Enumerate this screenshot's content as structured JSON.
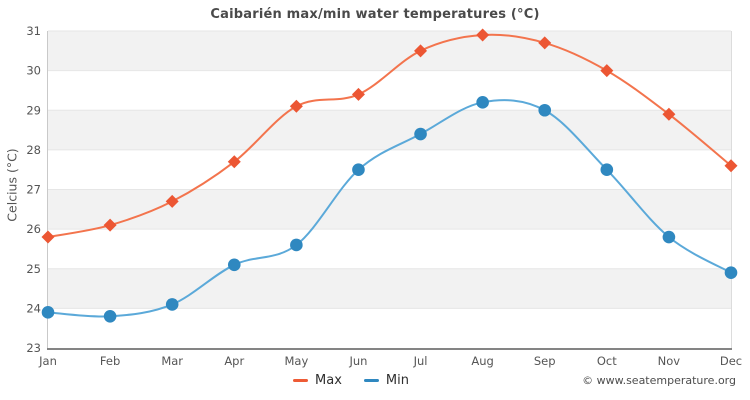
{
  "title": "Caibarién max/min water temperatures (°C)",
  "y_axis_title": "Celcius (°C)",
  "footer": "© www.seatemperature.org",
  "legend": {
    "items": [
      {
        "label": "Max",
        "color": "#ee5b35"
      },
      {
        "label": "Min",
        "color": "#2f88c0"
      }
    ]
  },
  "colors": {
    "band_fill": "#f2f2f2",
    "gridline": "#e6e6e6",
    "left_spine": "#c9c9c9",
    "right_spine": "#dcdcdc",
    "bottom_spine": "#848484",
    "max_line": "#f3744d",
    "max_marker": "#ec5633",
    "min_line": "#5ba9d9",
    "min_marker": "#2f88c0"
  },
  "chart_data": {
    "type": "line",
    "title": "Caibarién max/min water temperatures (°C)",
    "xlabel": "",
    "ylabel": "Celcius (°C)",
    "categories": [
      "Jan",
      "Feb",
      "Mar",
      "Apr",
      "May",
      "Jun",
      "Jul",
      "Aug",
      "Sep",
      "Oct",
      "Nov",
      "Dec"
    ],
    "series": [
      {
        "name": "Max",
        "marker": "diamond",
        "values": [
          25.8,
          26.1,
          26.7,
          27.7,
          29.1,
          29.4,
          30.5,
          30.9,
          30.7,
          30.0,
          28.9,
          27.6
        ]
      },
      {
        "name": "Min",
        "marker": "circle",
        "values": [
          23.9,
          23.8,
          24.1,
          25.1,
          25.6,
          27.5,
          28.4,
          29.2,
          29.0,
          27.5,
          25.8,
          24.9
        ]
      }
    ],
    "ylim": [
      23,
      31
    ],
    "ytick_step": 1,
    "grid": true,
    "banded_background": true,
    "legend_position": "bottom"
  }
}
